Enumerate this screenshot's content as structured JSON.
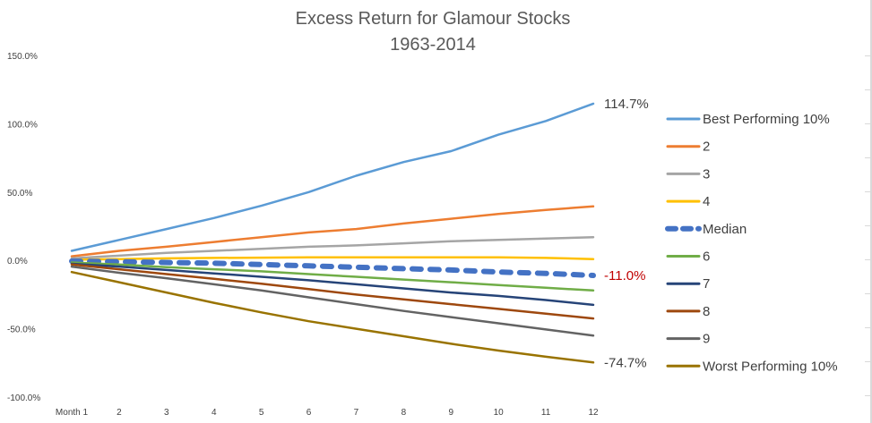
{
  "chart_data": {
    "type": "line",
    "title": "Excess Return for Glamour Stocks",
    "subtitle": "1963-2014",
    "xlabel": "",
    "ylabel": "",
    "ylim": [
      -100,
      150
    ],
    "y_ticks": [
      "150.0%",
      "100.0%",
      "50.0%",
      "0.0%",
      "-50.0%",
      "-100.0%"
    ],
    "categories": [
      "Month 1",
      "2",
      "3",
      "4",
      "5",
      "6",
      "7",
      "8",
      "9",
      "10",
      "11",
      "12"
    ],
    "legend_position": "right",
    "grid": false,
    "series": [
      {
        "name": "Best Performing 10%",
        "color": "#5B9BD5",
        "style": "solid",
        "values": [
          7.0,
          15.0,
          23.0,
          31.0,
          40.0,
          50.0,
          62.0,
          72.0,
          80.0,
          92.0,
          102.0,
          114.7
        ]
      },
      {
        "name": "2",
        "color": "#ED7D31",
        "style": "solid",
        "values": [
          3.0,
          7.0,
          10.0,
          13.5,
          17.0,
          20.5,
          23.0,
          27.0,
          30.5,
          34.0,
          37.0,
          39.5
        ]
      },
      {
        "name": "3",
        "color": "#A5A5A5",
        "style": "solid",
        "values": [
          1.5,
          3.5,
          5.5,
          7.0,
          8.5,
          10.0,
          11.0,
          12.5,
          14.0,
          15.0,
          16.0,
          17.0
        ]
      },
      {
        "name": "4",
        "color": "#FFC000",
        "style": "solid",
        "values": [
          0.5,
          1.0,
          1.5,
          1.8,
          2.0,
          2.2,
          2.2,
          2.3,
          2.3,
          2.2,
          1.8,
          1.0
        ]
      },
      {
        "name": "Median",
        "color": "#4472C4",
        "style": "dashed",
        "values": [
          -0.5,
          -1.0,
          -1.5,
          -2.0,
          -3.0,
          -4.0,
          -5.0,
          -6.0,
          -7.0,
          -8.5,
          -9.5,
          -11.0
        ]
      },
      {
        "name": "6",
        "color": "#70AD47",
        "style": "solid",
        "values": [
          -1.5,
          -3.0,
          -5.0,
          -6.5,
          -8.0,
          -10.0,
          -12.0,
          -14.0,
          -16.0,
          -18.0,
          -20.0,
          -22.0
        ]
      },
      {
        "name": "7",
        "color": "#264478",
        "style": "solid",
        "values": [
          -2.5,
          -4.5,
          -7.0,
          -9.5,
          -12.0,
          -14.5,
          -17.5,
          -20.5,
          -23.5,
          -26.0,
          -29.0,
          -32.5
        ]
      },
      {
        "name": "8",
        "color": "#9E480E",
        "style": "solid",
        "values": [
          -3.0,
          -6.5,
          -10.0,
          -13.5,
          -17.0,
          -21.0,
          -25.0,
          -28.5,
          -32.0,
          -35.5,
          -39.0,
          -42.5
        ]
      },
      {
        "name": "9",
        "color": "#636363",
        "style": "solid",
        "values": [
          -4.5,
          -9.0,
          -13.0,
          -17.5,
          -22.0,
          -27.0,
          -32.0,
          -37.0,
          -41.5,
          -46.0,
          -50.5,
          -55.0
        ]
      },
      {
        "name": "Worst Performing 10%",
        "color": "#997300",
        "style": "solid",
        "values": [
          -8.5,
          -16.0,
          -23.5,
          -31.0,
          -38.0,
          -44.5,
          -50.0,
          -55.5,
          -61.0,
          -66.0,
          -70.5,
          -74.7
        ]
      }
    ],
    "end_labels": [
      {
        "text": "114.7%",
        "series": "Best Performing 10%",
        "color": "#404040"
      },
      {
        "text": "-11.0%",
        "series": "Median",
        "color": "#C00000"
      },
      {
        "text": "-74.7%",
        "series": "Worst Performing 10%",
        "color": "#404040"
      }
    ]
  }
}
